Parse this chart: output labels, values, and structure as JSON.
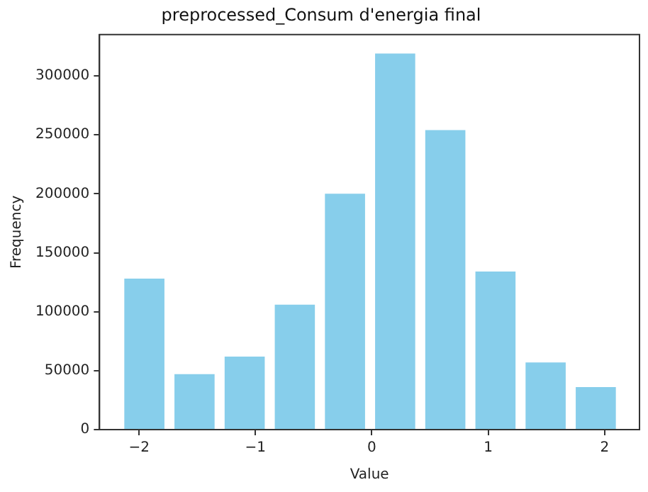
{
  "chart_data": {
    "type": "histogram",
    "title": "preprocessed_Consum d'energia final",
    "xlabel": "Value",
    "ylabel": "Frequency",
    "bins": [
      -2.17,
      -1.739,
      -1.308,
      -0.877,
      -0.446,
      -0.015,
      0.416,
      0.847,
      1.278,
      1.709,
      2.14
    ],
    "values": [
      128000,
      47000,
      62000,
      106000,
      200000,
      319000,
      254000,
      134000,
      57000,
      36000
    ],
    "color": "#87ceeb",
    "xlim": [
      -2.34,
      2.3
    ],
    "xticks": [
      {
        "value": -2,
        "label": "−2"
      },
      {
        "value": -1,
        "label": "−1"
      },
      0,
      1,
      2
    ],
    "ylim": [
      0,
      335000
    ],
    "yticks": [
      0,
      50000,
      100000,
      150000,
      200000,
      250000,
      300000
    ],
    "grid": false,
    "legend": false
  }
}
